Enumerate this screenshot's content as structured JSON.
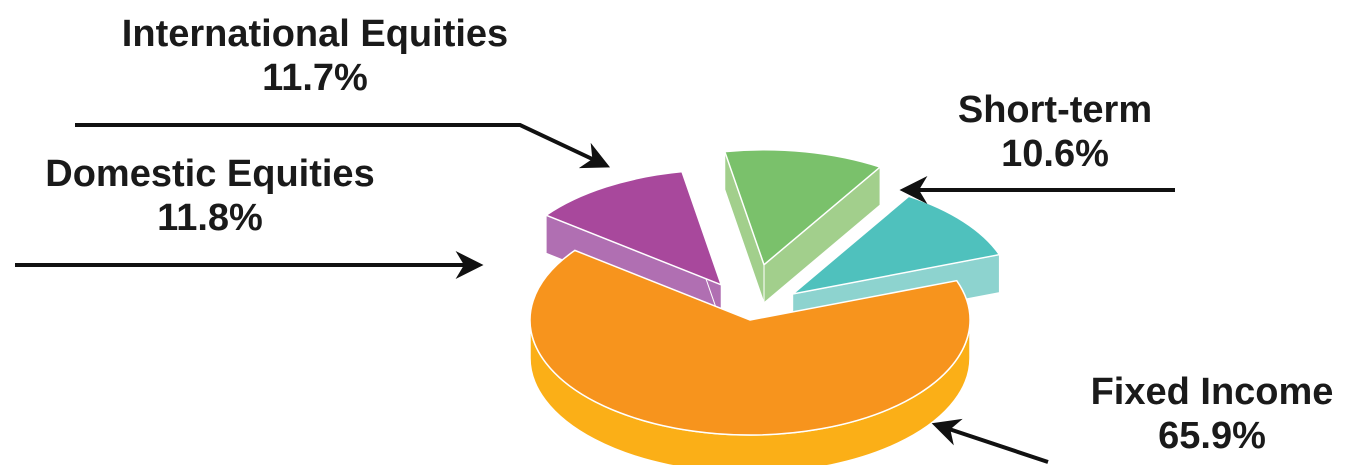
{
  "chart_data": {
    "type": "pie",
    "style": "3d-exploded",
    "slices": [
      {
        "label": "Fixed Income",
        "value": 65.9,
        "value_label": "65.9%",
        "color": "#F7941D",
        "side_color": "#FBAF17"
      },
      {
        "label": "Domestic Equities",
        "value": 11.8,
        "value_label": "11.8%",
        "color": "#A8489C",
        "side_color": "#B06FB2"
      },
      {
        "label": "International Equities",
        "value": 11.7,
        "value_label": "11.7%",
        "color": "#7AC16B",
        "side_color": "#A2CF8C"
      },
      {
        "label": "Short-term",
        "value": 10.6,
        "value_label": "10.6%",
        "color": "#4FC1BD",
        "side_color": "#8DD3CF"
      }
    ],
    "legend": "none"
  }
}
